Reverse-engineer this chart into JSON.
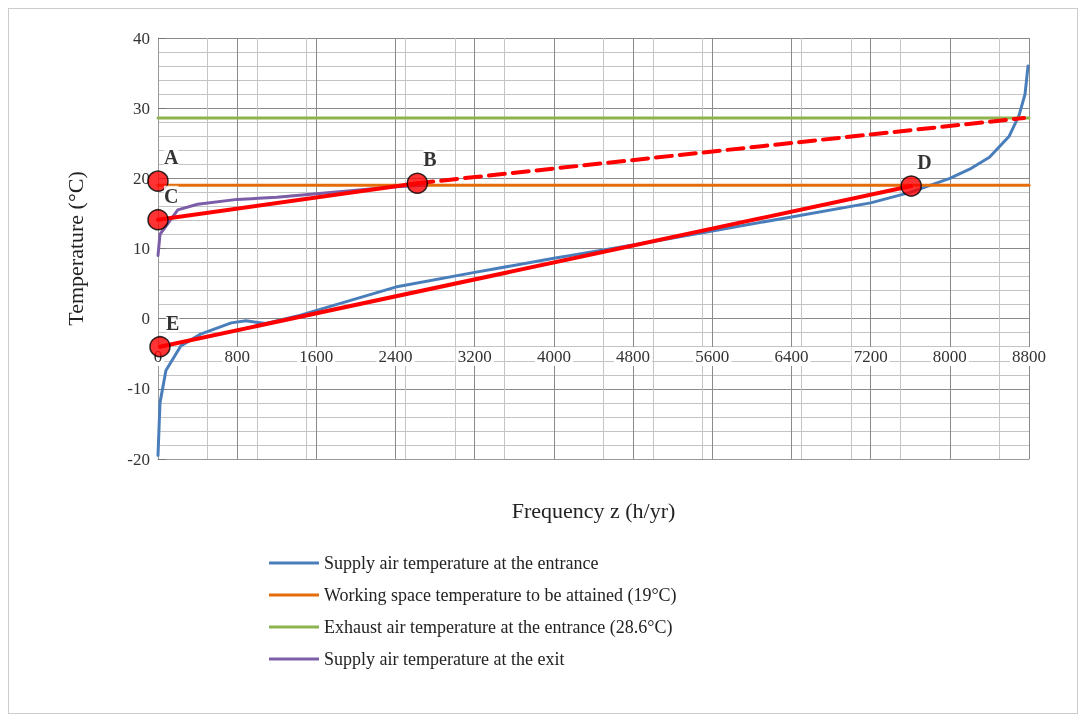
{
  "chart_data": {
    "type": "line",
    "xlabel": "Frequency z (h/yr)",
    "ylabel": "Temperature (°C)",
    "xlim": [
      0,
      8800
    ],
    "xticks": [
      0,
      800,
      1600,
      2400,
      3200,
      4000,
      4800,
      5600,
      6400,
      7200,
      8000,
      8800
    ],
    "ylim": [
      -20,
      40
    ],
    "yticks": [
      -20,
      -10,
      0,
      10,
      20,
      30,
      40
    ],
    "grid": true,
    "legend": "bottom",
    "marker": "none",
    "line_style": "solid",
    "series": [
      {
        "name": "Supply air temperature at the entrance",
        "color": "#4a7ebb",
        "x": [
          0,
          20,
          80,
          230,
          430,
          740,
          890,
          1090,
          1440,
          2400,
          3200,
          4000,
          4800,
          5600,
          6400,
          7200,
          7600,
          7800,
          8000,
          8200,
          8400,
          8600,
          8700,
          8760,
          8790
        ],
        "values": [
          -19.5,
          -12,
          -7.4,
          -3.9,
          -2.2,
          -0.6,
          -0.3,
          -0.7,
          0.5,
          4.5,
          6.6,
          8.6,
          10.5,
          12.5,
          14.5,
          16.5,
          18,
          19,
          20,
          21.3,
          23,
          26,
          29,
          32,
          36
        ]
      },
      {
        "name": "Working space temperature to be attained (19°C)",
        "color": "#e46c0a",
        "x": [
          0,
          8800
        ],
        "values": [
          19,
          19
        ]
      },
      {
        "name": "Exhaust air temperature at the entrance (28.6°C)",
        "color": "#8db34f",
        "x": [
          0,
          8800
        ],
        "values": [
          28.6,
          28.6
        ]
      },
      {
        "name": "Supply air temperature at the exit",
        "color": "#7b5ea7",
        "x": [
          0,
          20,
          200,
          400,
          800,
          1200,
          1600,
          2400,
          2700
        ],
        "values": [
          9,
          12,
          15.5,
          16.3,
          17,
          17.3,
          17.8,
          18.8,
          19
        ]
      },
      {
        "color": "#ff0000",
        "x": [
          0,
          2620
        ],
        "values": [
          14.1,
          19.3
        ]
      },
      {
        "color": "#ff0000",
        "x": [
          2620,
          8750
        ],
        "values": [
          19.3,
          28.6
        ],
        "line_style": "dashed"
      },
      {
        "color": "#ff0000",
        "x": [
          20,
          7610
        ],
        "values": [
          -4,
          18.9
        ]
      },
      {
        "type": "scatter",
        "marker": "circle",
        "color": "#ff0000",
        "x": [
          0,
          2620,
          0,
          7610,
          20
        ],
        "values": [
          19.6,
          19.3,
          14.1,
          18.9,
          -4
        ]
      }
    ],
    "annotations": [
      {
        "text": "A",
        "x": 0,
        "y": 19.6
      },
      {
        "text": "B",
        "x": 2620,
        "y": 19.3
      },
      {
        "text": "C",
        "x": 0,
        "y": 14.1
      },
      {
        "text": "D",
        "x": 7610,
        "y": 18.9
      },
      {
        "text": "E",
        "x": 20,
        "y": -4
      }
    ]
  }
}
